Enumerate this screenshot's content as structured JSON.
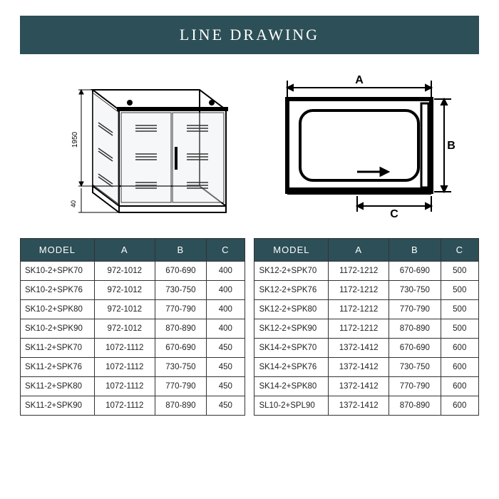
{
  "title": "LINE DRAWING",
  "colors": {
    "header_bg": "#2d4f57",
    "header_text": "#ffffff",
    "border": "#333333",
    "cell_text": "#222222",
    "page_bg": "#ffffff"
  },
  "diagram_3d": {
    "height_label": "1950",
    "base_label": "40"
  },
  "diagram_plan": {
    "label_a": "A",
    "label_b": "B",
    "label_c": "C"
  },
  "table_left": {
    "headers": [
      "MODEL",
      "A",
      "B",
      "C"
    ],
    "rows": [
      [
        "SK10-2+SPK70",
        "972-1012",
        "670-690",
        "400"
      ],
      [
        "SK10-2+SPK76",
        "972-1012",
        "730-750",
        "400"
      ],
      [
        "SK10-2+SPK80",
        "972-1012",
        "770-790",
        "400"
      ],
      [
        "SK10-2+SPK90",
        "972-1012",
        "870-890",
        "400"
      ],
      [
        "SK11-2+SPK70",
        "1072-1112",
        "670-690",
        "450"
      ],
      [
        "SK11-2+SPK76",
        "1072-1112",
        "730-750",
        "450"
      ],
      [
        "SK11-2+SPK80",
        "1072-1112",
        "770-790",
        "450"
      ],
      [
        "SK11-2+SPK90",
        "1072-1112",
        "870-890",
        "450"
      ]
    ]
  },
  "table_right": {
    "headers": [
      "MODEL",
      "A",
      "B",
      "C"
    ],
    "rows": [
      [
        "SK12-2+SPK70",
        "1172-1212",
        "670-690",
        "500"
      ],
      [
        "SK12-2+SPK76",
        "1172-1212",
        "730-750",
        "500"
      ],
      [
        "SK12-2+SPK80",
        "1172-1212",
        "770-790",
        "500"
      ],
      [
        "SK12-2+SPK90",
        "1172-1212",
        "870-890",
        "500"
      ],
      [
        "SK14-2+SPK70",
        "1372-1412",
        "670-690",
        "600"
      ],
      [
        "SK14-2+SPK76",
        "1372-1412",
        "730-750",
        "600"
      ],
      [
        "SK14-2+SPK80",
        "1372-1412",
        "770-790",
        "600"
      ],
      [
        "SL10-2+SPL90",
        "1372-1412",
        "870-890",
        "600"
      ]
    ]
  }
}
